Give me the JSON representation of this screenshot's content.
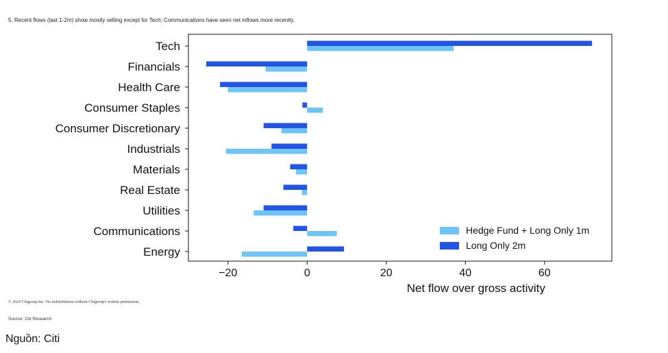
{
  "headline": "5. Recent flows (last 1-2m) show mostly selling except for Tech; Communications have seen net inflows more recently.",
  "copyright": "© 2024 Citigroup Inc. No redistribution without Citigroup's written permission.",
  "source": "Source: Citi Research",
  "credit": "Nguồn: Citi",
  "colors": {
    "hedge_long_1m": "#6ec3f7",
    "long_only_2m": "#2254e6"
  },
  "chart_data": {
    "type": "bar",
    "orientation": "horizontal",
    "categories": [
      "Tech",
      "Financials",
      "Health Care",
      "Consumer Staples",
      "Consumer Discretionary",
      "Industrials",
      "Materials",
      "Real Estate",
      "Utilities",
      "Communications",
      "Energy"
    ],
    "series": [
      {
        "name": "Long Only 2m",
        "color": "#2254e6",
        "values": [
          72,
          -25.5,
          -22,
          -1.2,
          -11,
          -9,
          -4.3,
          -6,
          -11,
          -3.5,
          9.3
        ]
      },
      {
        "name": "Hedge Fund + Long Only 1m",
        "color": "#6ec3f7",
        "values": [
          37,
          -10.5,
          -20,
          4,
          -6.5,
          -20.5,
          -2.8,
          -1.3,
          -13.5,
          7.5,
          -16.5
        ]
      }
    ],
    "legend": [
      "Hedge Fund + Long Only 1m",
      "Long Only 2m"
    ],
    "legend_position": "bottom-right",
    "xlabel": "Net flow over gross activity",
    "ylabel": "",
    "xlim": [
      -30,
      77
    ],
    "xticks": [
      -20,
      0,
      20,
      40,
      60
    ],
    "xtick_labels": [
      "−20",
      "0",
      "20",
      "40",
      "60"
    ],
    "grid": false
  }
}
